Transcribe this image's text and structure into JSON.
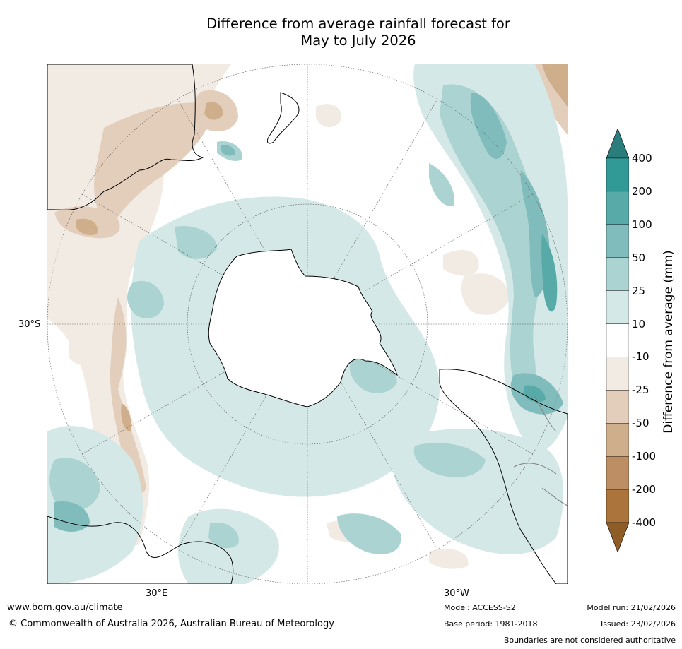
{
  "title": {
    "line1": "Difference from average rainfall forecast for",
    "line2": "May to July 2026"
  },
  "map": {
    "projection": "south-polar-stereographic",
    "latitude_label": "30°S",
    "longitude_labels": [
      "30°E",
      "30°W"
    ]
  },
  "colorbar": {
    "label": "Difference from average (mm)",
    "ticks": [
      "400",
      "200",
      "100",
      "50",
      "25",
      "10",
      "-10",
      "-25",
      "-50",
      "-100",
      "-200",
      "-400"
    ],
    "colors": [
      "#2a7d7b",
      "#319a97",
      "#58aaa8",
      "#80bcbb",
      "#abd3d2",
      "#d4e8e7",
      "#ffffff",
      "#f1ebe4",
      "#e3cdbb",
      "#cfae8c",
      "#bd8e63",
      "#ab743d",
      "#8e5d27"
    ]
  },
  "footer": {
    "url": "www.bom.gov.au/climate",
    "copyright": "© Commonwealth of Australia 2026, Australian Bureau of Meteorology",
    "model": "Model: ACCESS-S2",
    "base_period": "Base period: 1981-2018",
    "model_run": "Model run: 21/02/2026",
    "issued": "Issued: 23/02/2026",
    "disclaimer": "Boundaries are not considered authoritative"
  }
}
